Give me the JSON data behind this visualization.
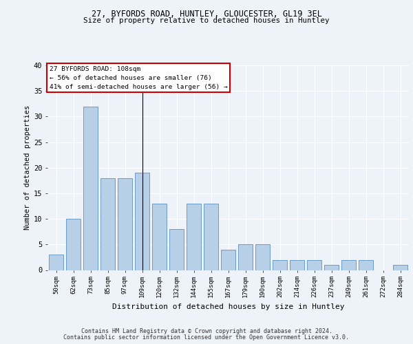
{
  "title1": "27, BYFORDS ROAD, HUNTLEY, GLOUCESTER, GL19 3EL",
  "title2": "Size of property relative to detached houses in Huntley",
  "xlabel": "Distribution of detached houses by size in Huntley",
  "ylabel": "Number of detached properties",
  "categories": [
    "50sqm",
    "62sqm",
    "73sqm",
    "85sqm",
    "97sqm",
    "109sqm",
    "120sqm",
    "132sqm",
    "144sqm",
    "155sqm",
    "167sqm",
    "179sqm",
    "190sqm",
    "202sqm",
    "214sqm",
    "226sqm",
    "237sqm",
    "249sqm",
    "261sqm",
    "272sqm",
    "284sqm"
  ],
  "values": [
    3,
    10,
    32,
    18,
    18,
    19,
    13,
    8,
    13,
    13,
    4,
    5,
    5,
    2,
    2,
    2,
    1,
    2,
    2,
    0,
    1
  ],
  "subject_index": 5,
  "subject_label": "27 BYFORDS ROAD: 108sqm",
  "annotation_line1": "← 56% of detached houses are smaller (76)",
  "annotation_line2": "41% of semi-detached houses are larger (56) →",
  "bar_color_normal": "#b8cfe8",
  "bar_edge_color": "#5a8fc0",
  "subject_line_color": "#000000",
  "annotation_box_color": "#cc0000",
  "background_color": "#eef2f9",
  "grid_color": "#ffffff",
  "ylim": [
    0,
    40
  ],
  "yticks": [
    0,
    5,
    10,
    15,
    20,
    25,
    30,
    35,
    40
  ],
  "footer_line1": "Contains HM Land Registry data © Crown copyright and database right 2024.",
  "footer_line2": "Contains public sector information licensed under the Open Government Licence v3.0."
}
